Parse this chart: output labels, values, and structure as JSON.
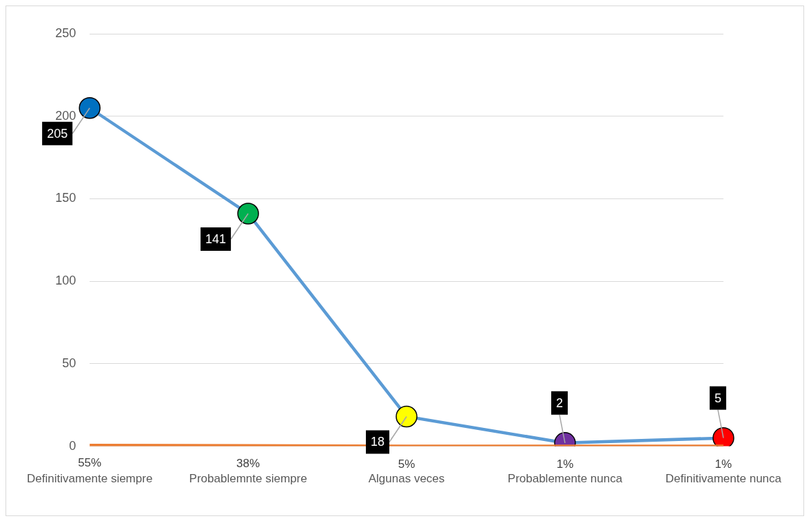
{
  "chart_data": {
    "type": "line",
    "categories": [
      "Definitivamente siempre",
      "Probablemnte siempre",
      "Algunas veces",
      "Probablemente nunca",
      "Definitivamente nunca"
    ],
    "series": [
      {
        "color": "#5b9bd5",
        "colors": [
          "#0070c0",
          "#00b050",
          "#ffff00",
          "#7030a0",
          "#ff0000"
        ],
        "marker": "circle",
        "values": [
          205,
          141,
          18,
          2,
          5
        ],
        "data_labels": true
      },
      {
        "color": "#ed7d31",
        "marker": "none",
        "values": [
          0.55,
          0.38,
          0.05,
          0.01,
          0.01
        ],
        "value_labels": [
          "55%",
          "38%",
          "5%",
          "1%",
          "1%"
        ]
      }
    ],
    "ylim": [
      0,
      250
    ],
    "yticks": [
      0,
      50,
      100,
      150,
      200,
      250
    ],
    "grid": "y",
    "legend": false
  }
}
